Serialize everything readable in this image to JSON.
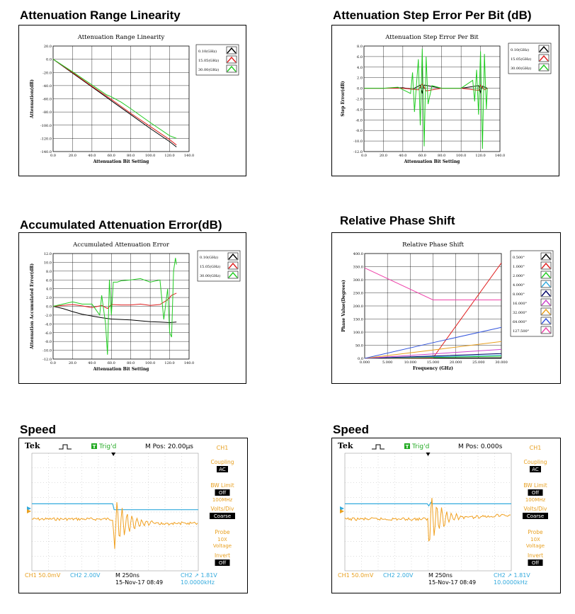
{
  "sections": {
    "att_linearity": "Attenuation Range Linearity",
    "step_error": "Attenuation Step Error Per Bit (dB)",
    "accum_error": "Accumulated Attenuation Error(dB)",
    "phase_shift": "Relative Phase Shift",
    "speed_left": "Speed",
    "speed_right": "Speed"
  },
  "chart_data": [
    {
      "id": "linearity",
      "type": "line",
      "title": "Attenuation Range Linearity",
      "xlabel": "Attenuation Bit Setting",
      "ylabel": "Attenuation(dB)",
      "xlim": [
        0,
        140
      ],
      "ylim": [
        -140,
        20
      ],
      "xticks": [
        "0.0",
        "20.0",
        "40.0",
        "60.0",
        "80.0",
        "100.0",
        "120.0",
        "140.0"
      ],
      "yticks": [
        "20.0",
        "0.0",
        "-20.0",
        "-40.0",
        "-60.0",
        "-80.0",
        "-100.0",
        "-120.0",
        "-140.0"
      ],
      "legend_position": "top-right",
      "series": [
        {
          "name": "0.10(GHz)",
          "color": "#000000",
          "x": [
            0,
            20,
            40,
            60,
            80,
            100,
            120,
            127
          ],
          "y": [
            0,
            -21,
            -42,
            -63,
            -84,
            -105,
            -125,
            -133
          ]
        },
        {
          "name": "15.05(GHz)",
          "color": "#e02020",
          "x": [
            0,
            20,
            40,
            60,
            80,
            100,
            120,
            127
          ],
          "y": [
            0,
            -20,
            -41,
            -61,
            -82,
            -102,
            -122,
            -130
          ]
        },
        {
          "name": "30.00(GHz)",
          "color": "#22cc22",
          "x": [
            0,
            20,
            40,
            55,
            60,
            70,
            80,
            100,
            120,
            127
          ],
          "y": [
            0,
            -19,
            -39,
            -54,
            -57,
            -65,
            -75,
            -96,
            -116,
            -120
          ]
        }
      ]
    },
    {
      "id": "step_error",
      "type": "line",
      "title": "Attenuation Step Error Per Bit",
      "xlabel": "Attenuation Bit Setting",
      "ylabel": "Step Error(dB)",
      "xlim": [
        0,
        140
      ],
      "ylim": [
        -12,
        8
      ],
      "xticks": [
        "0.0",
        "20.0",
        "40.0",
        "60.0",
        "80.0",
        "100.0",
        "120.0",
        "140.0"
      ],
      "yticks": [
        "8.0",
        "6.0",
        "4.0",
        "2.0",
        "0.0",
        "-2.0",
        "-4.0",
        "-6.0",
        "-8.0",
        "-10.0",
        "-12.0"
      ],
      "legend_position": "top-right",
      "series": [
        {
          "name": "0.10(GHz)",
          "color": "#000000",
          "x": [
            0,
            20,
            40,
            50,
            58,
            60,
            62,
            80,
            100,
            118,
            120,
            122,
            127
          ],
          "y": [
            0,
            0,
            0.1,
            -0.2,
            0.6,
            -1.0,
            0.6,
            0,
            0,
            0.5,
            -0.8,
            0.4,
            0
          ]
        },
        {
          "name": "15.05(GHz)",
          "color": "#e02020",
          "x": [
            0,
            20,
            40,
            56,
            60,
            64,
            80,
            100,
            118,
            120,
            124,
            127
          ],
          "y": [
            0,
            0,
            0,
            -0.3,
            0.8,
            -0.5,
            0,
            0,
            -0.4,
            0.6,
            -0.3,
            0
          ]
        },
        {
          "name": "30.00(GHz)",
          "color": "#22cc22",
          "x": [
            0,
            20,
            35,
            48,
            50,
            52,
            56,
            58,
            60,
            62,
            64,
            66,
            70,
            80,
            100,
            112,
            114,
            116,
            118,
            120,
            122,
            124,
            126,
            127
          ],
          "y": [
            0,
            0,
            0.2,
            -1.0,
            3.0,
            -4.5,
            5.5,
            -7.0,
            7.5,
            -11.0,
            6.0,
            -3.0,
            0.5,
            0,
            0,
            1.5,
            -2.5,
            3.5,
            -5.0,
            7.0,
            -11.5,
            6.5,
            -4.0,
            0
          ]
        }
      ]
    },
    {
      "id": "accumulated",
      "type": "line",
      "title": "Accumulated Attenuation Error",
      "xlabel": "Attenuation Bit Setting",
      "ylabel": "Attenuation Accumulated Error(dB)",
      "xlim": [
        0,
        140
      ],
      "ylim": [
        -12,
        12
      ],
      "xticks": [
        "0.0",
        "20.0",
        "40.0",
        "60.0",
        "80.0",
        "100.0",
        "120.0",
        "140.0"
      ],
      "yticks": [
        "12.0",
        "10.0",
        "8.0",
        "6.0",
        "4.0",
        "2.0",
        "0.0",
        "-2.0",
        "-4.0",
        "-6.0",
        "-8.0",
        "-10.0",
        "-12.0"
      ],
      "legend_position": "top-right",
      "series": [
        {
          "name": "0.10(GHz)",
          "color": "#000000",
          "x": [
            0,
            10,
            20,
            30,
            40,
            50,
            60,
            70,
            80,
            90,
            100,
            110,
            120,
            127
          ],
          "y": [
            0,
            -0.5,
            -1.2,
            -1.8,
            -2.2,
            -2.6,
            -2.9,
            -3.0,
            -3.1,
            -3.3,
            -3.5,
            -3.6,
            -3.7,
            -3.6
          ]
        },
        {
          "name": "15.05(GHz)",
          "color": "#e02020",
          "x": [
            0,
            10,
            20,
            30,
            40,
            50,
            56,
            60,
            70,
            80,
            90,
            100,
            110,
            118,
            122,
            127
          ],
          "y": [
            0,
            0.2,
            0.4,
            0.1,
            -0.3,
            0.2,
            -0.5,
            0.4,
            0.3,
            0.3,
            0.5,
            0.2,
            0.4,
            1.5,
            2.5,
            3.0
          ]
        },
        {
          "name": "30.00(GHz)",
          "color": "#22cc22",
          "x": [
            0,
            10,
            20,
            30,
            40,
            48,
            50,
            54,
            56,
            58,
            60,
            62,
            66,
            70,
            80,
            90,
            100,
            110,
            114,
            118,
            120,
            122,
            124,
            126,
            127
          ],
          "y": [
            0,
            0.5,
            1.0,
            0.5,
            0.5,
            -2.0,
            2.5,
            -4.0,
            -11.0,
            6.0,
            -2.0,
            5.5,
            5.5,
            5.8,
            6.0,
            6.3,
            5.5,
            6.0,
            -3.0,
            4.0,
            -6.0,
            -7.0,
            8.0,
            11.0,
            9.5
          ]
        }
      ]
    },
    {
      "id": "phase",
      "type": "line",
      "title": "Relative Phase Shift",
      "xlabel": "Frequency (GHz)",
      "ylabel": "Phase Value(Degrees)",
      "xlim": [
        0,
        30
      ],
      "ylim": [
        0,
        400
      ],
      "xticks": [
        "0.000",
        "5.000",
        "10.000",
        "15.000",
        "20.000",
        "25.000",
        "30.000"
      ],
      "yticks": [
        "400.0",
        "350.0",
        "300.0",
        "250.0",
        "200.0",
        "150.0",
        "100.0",
        "50.0",
        "0.0"
      ],
      "legend_position": "top-right",
      "series": [
        {
          "name": "0.500°",
          "color": "#000000",
          "x": [
            0,
            15,
            30
          ],
          "y": [
            0,
            1,
            2
          ]
        },
        {
          "name": "1.000°",
          "color": "#e02020",
          "x": [
            0,
            15,
            30
          ],
          "y": [
            0,
            2,
            364
          ]
        },
        {
          "name": "2.000°",
          "color": "#22cc22",
          "x": [
            0,
            15,
            30
          ],
          "y": [
            0,
            4,
            8
          ]
        },
        {
          "name": "4.000°",
          "color": "#33aadd",
          "x": [
            0,
            15,
            30
          ],
          "y": [
            0,
            6,
            12
          ]
        },
        {
          "name": "8.000°",
          "color": "#000066",
          "x": [
            0,
            15,
            30
          ],
          "y": [
            0,
            9,
            18
          ]
        },
        {
          "name": "16.000°",
          "color": "#cc44cc",
          "x": [
            0,
            15,
            30
          ],
          "y": [
            0,
            17,
            34
          ]
        },
        {
          "name": "32.000°",
          "color": "#e8a020",
          "x": [
            0,
            15,
            30
          ],
          "y": [
            0,
            32,
            64
          ]
        },
        {
          "name": "64.000°",
          "color": "#3355dd",
          "x": [
            0,
            15,
            30
          ],
          "y": [
            0,
            60,
            118
          ]
        },
        {
          "name": "127.500°",
          "color": "#ee44aa",
          "x": [
            0,
            15,
            30
          ],
          "y": [
            345,
            223,
            223
          ]
        }
      ]
    }
  ],
  "scopes": [
    {
      "id": "left",
      "brand": "Tek",
      "trig": "Trig'd",
      "trig_badge": "T",
      "mpos": "M Pos: 20.00µs",
      "ch_label": "CH1",
      "menu": [
        {
          "label": "Coupling",
          "value": "AC"
        },
        {
          "label": "BW Limit",
          "value": "Off",
          "extra": "100MHz"
        },
        {
          "label": "Volts/Div",
          "value": "Coarse"
        },
        {
          "label": "Probe",
          "value2": "10X",
          "value3": "Voltage"
        },
        {
          "label": "Invert",
          "value": "Off"
        }
      ],
      "bottom": {
        "ch1": "CH1  50.0mV",
        "ch2": "CH2  2.00V",
        "m": "M 250ns",
        "date": "15-Nov-17 08:49",
        "ch2trig": "CH2 ↗ 1.81V",
        "freq": "10.0000kHz"
      },
      "edge_fraction": 0.49
    },
    {
      "id": "right",
      "brand": "Tek",
      "trig": "Trig'd",
      "trig_badge": "T",
      "mpos": "M Pos: 0.000s",
      "ch_label": "CH1",
      "menu": [
        {
          "label": "Coupling",
          "value": "AC"
        },
        {
          "label": "BW Limit",
          "value": "Off",
          "extra": "100MHz"
        },
        {
          "label": "Volts/Div",
          "value": "Coarse"
        },
        {
          "label": "Probe",
          "value2": "10X",
          "value3": "Voltage"
        },
        {
          "label": "Invert",
          "value": "Off"
        }
      ],
      "bottom": {
        "ch1": "CH1  50.0mV",
        "ch2": "CH2  2.00V",
        "m": "M 250ns",
        "date": "15-Nov-17 08:49",
        "ch2trig": "CH2 ↗ 1.81V",
        "freq": "10.0000kHz"
      },
      "edge_fraction": 0.5
    }
  ]
}
